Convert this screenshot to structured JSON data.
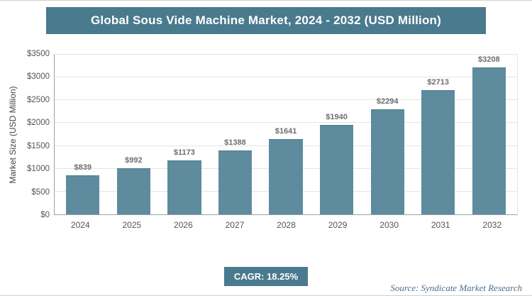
{
  "title": "Global Sous Vide Machine Market, 2024 - 2032 (USD Million)",
  "chart_data": {
    "type": "bar",
    "title": "Global Sous Vide Machine Market, 2024 - 2032 (USD Million)",
    "categories": [
      "2024",
      "2025",
      "2026",
      "2027",
      "2028",
      "2029",
      "2030",
      "2031",
      "2032"
    ],
    "values": [
      839,
      992,
      1173,
      1388,
      1641,
      1940,
      2294,
      2713,
      3208
    ],
    "value_labels": [
      "$839",
      "$992",
      "$1173",
      "$1388",
      "$1641",
      "$1940",
      "$2294",
      "$2713",
      "$3208"
    ],
    "xlabel": "",
    "ylabel": "Market Size (USD Million)",
    "ylim": [
      0,
      3500
    ],
    "ytick_labels": [
      "$0",
      "$500",
      "$1000",
      "$1500",
      "$2000",
      "$2500",
      "$3000",
      "$3500"
    ],
    "grid": true,
    "legend": false
  },
  "footer": {
    "cagr_label": "CAGR: 18.25%",
    "source": "Source: Syndicate Market Research"
  },
  "colors": {
    "title_bar_bg": "#497a8d",
    "bar_fill": "#5e8b9e",
    "bar_border": "#4e7a8d",
    "badge_bg": "#497a8d"
  }
}
